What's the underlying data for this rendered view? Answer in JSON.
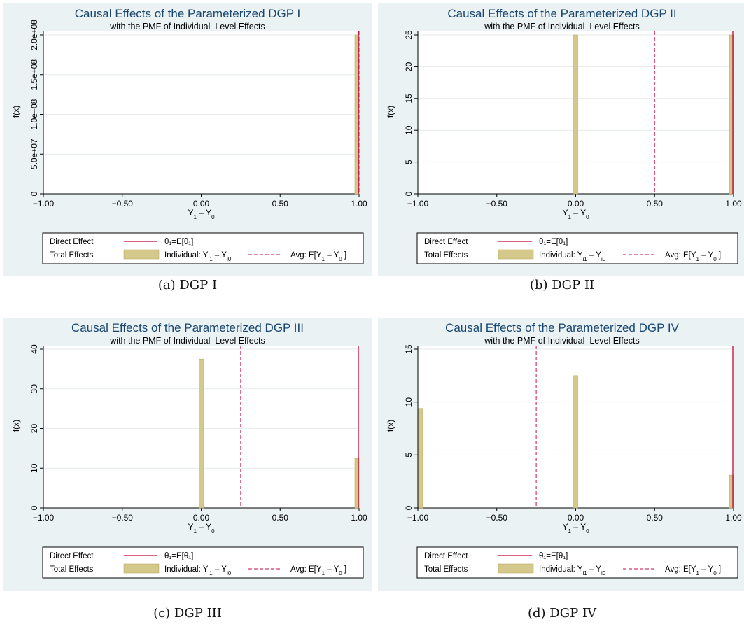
{
  "legend": {
    "direct_label": "Direct Effect",
    "total_label": "Total Effects",
    "theta_key": "θ₁=E[θ₁]",
    "indiv_key_prefix": "Individual:  Y",
    "indiv_key_sub1": "i1",
    "indiv_key_mid": " – Y",
    "indiv_key_sub0": "i0",
    "avg_key_prefix": "Avg:  E[Y",
    "avg_key_sub1": "1",
    "avg_key_mid": " – Y",
    "avg_key_sub0": "0",
    "avg_key_suffix": " ]"
  },
  "xlabel": {
    "main": "Y",
    "sub1": "1",
    "mid": " – Y",
    "sub0": "0"
  },
  "ylabel": "f(x)",
  "colors": {
    "panel_bg": "#eaf2f3",
    "title": "#1a476f",
    "bar": "#d4c98a",
    "bar_edge": "#b8ab64",
    "direct": "#c10534",
    "avg": "#d03a6a",
    "grid": "#e6eaea"
  },
  "chart_data": [
    {
      "type": "bar",
      "caption": "(a) DGP I",
      "title": "Causal Effects of the Parameterized DGP I",
      "subtitle": "with the PMF of Individual–Level Effects",
      "xlim": [
        -1,
        1
      ],
      "ylim": [
        0,
        200000000
      ],
      "xticks": [
        "-1.00",
        "-0.50",
        "0.00",
        "0.50",
        "1.00"
      ],
      "yticks": [
        0,
        50000000,
        100000000,
        150000000,
        200000000
      ],
      "ytick_labels": [
        "0",
        "5.0e+07",
        "1.0e+08",
        "1.5e+08",
        "2.0e+08"
      ],
      "bars": [
        {
          "x": 1.0,
          "value": 200000000
        }
      ],
      "direct_effect": 1.0,
      "avg_effect": 1.0
    },
    {
      "type": "bar",
      "caption": "(b) DGP II",
      "title": "Causal Effects of the Parameterized DGP II",
      "subtitle": "with the PMF of Individual–Level Effects",
      "xlim": [
        -1,
        1
      ],
      "ylim": [
        0,
        25
      ],
      "xticks": [
        "-1.00",
        "-0.50",
        "0.00",
        "0.50",
        "1.00"
      ],
      "yticks": [
        0,
        5,
        10,
        15,
        20,
        25
      ],
      "ytick_labels": [
        "0",
        "5",
        "10",
        "15",
        "20",
        "25"
      ],
      "bars": [
        {
          "x": 0.0,
          "value": 25
        },
        {
          "x": 1.0,
          "value": 25
        }
      ],
      "direct_effect": 1.0,
      "avg_effect": 0.5
    },
    {
      "type": "bar",
      "caption": "(c) DGP III",
      "title": "Causal Effects of the Parameterized DGP III",
      "subtitle": "with the PMF of Individual–Level Effects",
      "xlim": [
        -1,
        1
      ],
      "ylim": [
        0,
        40
      ],
      "xticks": [
        "-1.00",
        "-0.50",
        "0.00",
        "0.50",
        "1.00"
      ],
      "yticks": [
        0,
        10,
        20,
        30,
        40
      ],
      "ytick_labels": [
        "0",
        "10",
        "20",
        "30",
        "40"
      ],
      "bars": [
        {
          "x": 0.0,
          "value": 37.5
        },
        {
          "x": 1.0,
          "value": 12.5
        }
      ],
      "direct_effect": 1.0,
      "avg_effect": 0.25
    },
    {
      "type": "bar",
      "caption": "(d) DGP IV",
      "title": "Causal Effects of the Parameterized DGP IV",
      "subtitle": "with the PMF of Individual–Level Effects",
      "xlim": [
        -1,
        1
      ],
      "ylim": [
        0,
        15
      ],
      "xticks": [
        "-1.00",
        "-0.50",
        "0.00",
        "0.50",
        "1.00"
      ],
      "yticks": [
        0,
        5,
        10,
        15
      ],
      "ytick_labels": [
        "0",
        "5",
        "10",
        "15"
      ],
      "bars": [
        {
          "x": -1.0,
          "value": 9.4
        },
        {
          "x": 0.0,
          "value": 12.5
        },
        {
          "x": 1.0,
          "value": 3.1
        }
      ],
      "direct_effect": 1.0,
      "avg_effect": -0.25
    }
  ]
}
